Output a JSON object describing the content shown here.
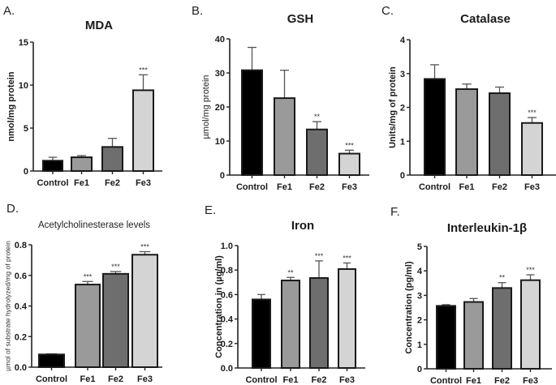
{
  "figure": {
    "bar_colors": [
      "#000000",
      "#9a9a9a",
      "#6e6e6e",
      "#d4d4d4"
    ],
    "outline_color": "#1a1a1a",
    "errorbar_color": "#555555"
  },
  "chart_data": [
    {
      "panel": "A.",
      "type": "bar",
      "title": "MDA",
      "title_bold": true,
      "xlabel": "",
      "ylabel": "nmol/mg protein",
      "ylabel_bold": true,
      "categories": [
        "Control",
        "Fe1",
        "Fe2",
        "Fe3"
      ],
      "values": [
        1.2,
        1.6,
        2.8,
        9.4
      ],
      "errors": [
        0.4,
        0.2,
        1.0,
        1.8
      ],
      "significance": [
        "",
        "",
        "",
        "***"
      ],
      "ylim": [
        0,
        15
      ],
      "yticks": [
        0,
        5,
        10,
        15
      ],
      "ytick_labels": [
        "0",
        "5",
        "10",
        "15"
      ],
      "grid": false
    },
    {
      "panel": "B.",
      "type": "bar",
      "title": "GSH",
      "title_bold": true,
      "xlabel": "",
      "ylabel": "µmol/mg protein",
      "ylabel_bold": false,
      "categories": [
        "Control",
        "Fe1",
        "Fe2",
        "Fe3"
      ],
      "values": [
        30.8,
        22.6,
        13.4,
        6.3
      ],
      "errors": [
        6.7,
        8.2,
        2.3,
        1.0
      ],
      "significance": [
        "",
        "",
        "**",
        "***"
      ],
      "ylim": [
        0,
        40
      ],
      "yticks": [
        0,
        10,
        20,
        30,
        40
      ],
      "ytick_labels": [
        "0",
        "10",
        "20",
        "30",
        "40"
      ],
      "grid": false
    },
    {
      "panel": "C.",
      "type": "bar",
      "title": "Catalase",
      "title_bold": true,
      "xlabel": "",
      "ylabel": "Units/mg of protein",
      "ylabel_bold": true,
      "categories": [
        "Control",
        "Fe1",
        "Fe2",
        "Fe3"
      ],
      "values": [
        2.84,
        2.54,
        2.42,
        1.54
      ],
      "errors": [
        0.42,
        0.15,
        0.18,
        0.16
      ],
      "significance": [
        "",
        "",
        "",
        "***"
      ],
      "ylim": [
        0,
        4
      ],
      "yticks": [
        0,
        1,
        2,
        3,
        4
      ],
      "ytick_labels": [
        "0",
        "1",
        "2",
        "3",
        "4"
      ],
      "grid": false
    },
    {
      "panel": "D.",
      "type": "bar",
      "title": "Acetylcholinesterase levels",
      "title_bold": false,
      "xlabel": "",
      "ylabel": "µmol of substrate hydrolyzed/mg of protein",
      "ylabel_bold": false,
      "categories": [
        "Control",
        "Fe1",
        "Fe2",
        "Fe3"
      ],
      "values": [
        0.083,
        0.54,
        0.61,
        0.735
      ],
      "errors": [
        0.004,
        0.02,
        0.015,
        0.02
      ],
      "significance": [
        "",
        "***",
        "***",
        "***"
      ],
      "ylim": [
        0,
        0.8
      ],
      "yticks": [
        0,
        0.2,
        0.4,
        0.6,
        0.8
      ],
      "ytick_labels": [
        "0.0",
        "0.2",
        "0.4",
        "0.6",
        "0.8"
      ],
      "grid": false
    },
    {
      "panel": "E.",
      "type": "bar",
      "title": "Iron",
      "title_bold": true,
      "xlabel": "",
      "ylabel": "Concentration in (µg/ml)",
      "ylabel_bold": true,
      "categories": [
        "Control",
        "Fe1",
        "Fe2",
        "Fe3"
      ],
      "values": [
        0.56,
        0.715,
        0.735,
        0.808
      ],
      "errors": [
        0.04,
        0.025,
        0.14,
        0.05
      ],
      "significance": [
        "",
        "**",
        "***",
        "***"
      ],
      "ylim": [
        0,
        1.0
      ],
      "yticks": [
        0,
        0.2,
        0.4,
        0.6,
        0.8,
        1.0
      ],
      "ytick_labels": [
        "0.0",
        "0.2",
        "0.4",
        "0.6",
        "0.8",
        "1.0"
      ],
      "grid": false
    },
    {
      "panel": "F.",
      "type": "bar",
      "title": "Interleukin-1β",
      "title_bold": true,
      "xlabel": "",
      "ylabel": "Concentration (pg/ml)",
      "ylabel_bold": true,
      "categories": [
        "Control",
        "Fe1",
        "Fe2",
        "Fe3"
      ],
      "values": [
        2.57,
        2.73,
        3.3,
        3.62
      ],
      "errors": [
        0.05,
        0.14,
        0.22,
        0.22
      ],
      "significance": [
        "",
        "",
        "**",
        "***"
      ],
      "ylim": [
        0,
        5
      ],
      "yticks": [
        0,
        1,
        2,
        3,
        4,
        5
      ],
      "ytick_labels": [
        "0",
        "1",
        "2",
        "3",
        "4",
        "5"
      ],
      "grid": false
    }
  ]
}
